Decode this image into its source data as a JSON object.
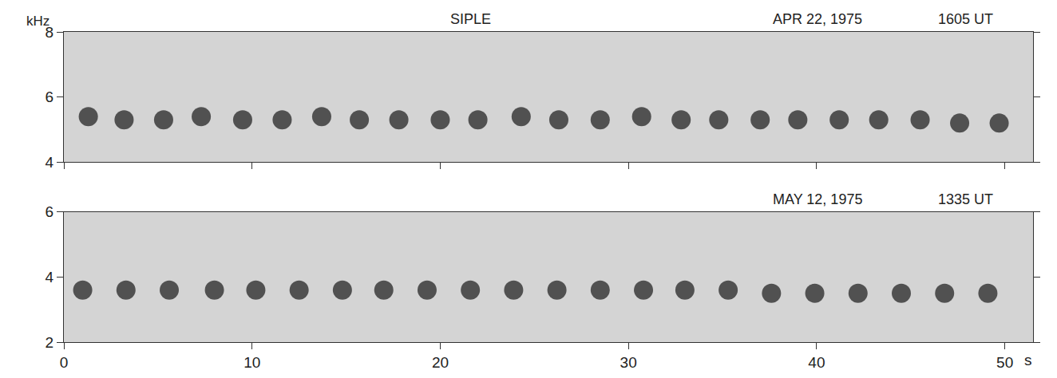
{
  "chart_data": [
    {
      "type": "scatter",
      "title": "SIPLE",
      "annotations": [
        "APR 22, 1975",
        "1605 UT"
      ],
      "y_label": "kHz",
      "x": [
        1.3,
        3.2,
        5.3,
        7.3,
        9.5,
        11.6,
        13.7,
        15.7,
        17.8,
        20.0,
        22.0,
        24.3,
        26.3,
        28.5,
        30.7,
        32.8,
        34.8,
        37.0,
        39.0,
        41.2,
        43.3,
        45.5,
        47.6,
        49.7
      ],
      "values": [
        5.4,
        5.3,
        5.3,
        5.4,
        5.3,
        5.3,
        5.4,
        5.3,
        5.3,
        5.3,
        5.3,
        5.4,
        5.3,
        5.3,
        5.4,
        5.3,
        5.3,
        5.3,
        5.3,
        5.3,
        5.3,
        5.3,
        5.2,
        5.2
      ],
      "color": "#3a3a3a",
      "marker": "circle",
      "xlim": [
        0,
        51.5
      ],
      "xticks": [
        0,
        10,
        20,
        30,
        40,
        50
      ],
      "ylim": [
        4,
        8
      ],
      "yticks": [
        4,
        6,
        8
      ],
      "tick_labels": "y",
      "grid": false
    },
    {
      "type": "scatter",
      "annotations": [
        "MAY 12, 1975",
        "1335 UT"
      ],
      "x_label": "s",
      "x": [
        1.0,
        3.3,
        5.6,
        8.0,
        10.2,
        12.5,
        14.8,
        17.0,
        19.3,
        21.6,
        23.9,
        26.2,
        28.5,
        30.8,
        33.0,
        35.3,
        37.6,
        39.9,
        42.2,
        44.5,
        46.8,
        49.1
      ],
      "values": [
        3.6,
        3.6,
        3.6,
        3.6,
        3.6,
        3.6,
        3.6,
        3.6,
        3.6,
        3.6,
        3.6,
        3.6,
        3.6,
        3.6,
        3.6,
        3.6,
        3.5,
        3.5,
        3.5,
        3.5,
        3.5,
        3.5
      ],
      "color": "#3a3a3a",
      "marker": "circle",
      "xlim": [
        0,
        51.5
      ],
      "xticks": [
        0,
        10,
        20,
        30,
        40,
        50
      ],
      "ylim": [
        2,
        6
      ],
      "yticks": [
        2,
        4,
        6
      ],
      "grid": false
    }
  ]
}
